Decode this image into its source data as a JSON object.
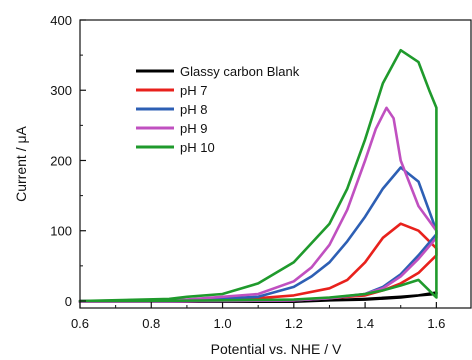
{
  "chart_data": {
    "type": "line",
    "title": "",
    "xlabel": "Potential vs. NHE / V",
    "ylabel": "Current / μA",
    "xlim": [
      0.6,
      1.7
    ],
    "ylim": [
      -10,
      400
    ],
    "xticks": [
      0.6,
      0.8,
      1.0,
      1.2,
      1.4,
      1.6
    ],
    "yticks": [
      0,
      100,
      200,
      300,
      400
    ],
    "grid": false,
    "legend_position": "top-left",
    "series": [
      {
        "name": "Glassy carbon Blank",
        "color": "#000000",
        "x": [
          0.6,
          0.9,
          1.1,
          1.3,
          1.4,
          1.5,
          1.55,
          1.6,
          1.6,
          1.5,
          1.4,
          1.3,
          1.2,
          1.0,
          0.8,
          0.6
        ],
        "y": [
          0,
          0,
          0.5,
          1,
          2,
          5,
          8,
          12,
          10,
          6,
          3,
          1,
          -1,
          -1,
          -1,
          -1
        ]
      },
      {
        "name": "pH 7",
        "color": "#e8211c",
        "x": [
          0.6,
          0.9,
          1.1,
          1.2,
          1.3,
          1.35,
          1.4,
          1.45,
          1.5,
          1.55,
          1.6,
          1.6,
          1.55,
          1.5,
          1.45,
          1.4,
          1.3,
          1.2,
          1.0,
          0.8,
          0.6
        ],
        "y": [
          0,
          1,
          4,
          8,
          18,
          30,
          55,
          90,
          110,
          100,
          75,
          65,
          40,
          25,
          15,
          8,
          4,
          1,
          0,
          -1,
          -1
        ]
      },
      {
        "name": "pH 8",
        "color": "#2d5fb4",
        "x": [
          0.6,
          0.9,
          1.1,
          1.2,
          1.25,
          1.3,
          1.35,
          1.4,
          1.45,
          1.5,
          1.55,
          1.6,
          1.6,
          1.55,
          1.5,
          1.45,
          1.4,
          1.3,
          1.2,
          1.0,
          0.8,
          0.6
        ],
        "y": [
          0,
          1,
          6,
          20,
          35,
          55,
          85,
          120,
          160,
          190,
          170,
          100,
          95,
          65,
          38,
          20,
          10,
          4,
          1,
          0,
          -1,
          -1
        ]
      },
      {
        "name": "pH 9",
        "color": "#c050c0",
        "x": [
          0.6,
          0.9,
          1.1,
          1.2,
          1.25,
          1.3,
          1.35,
          1.4,
          1.43,
          1.46,
          1.48,
          1.5,
          1.55,
          1.6,
          1.6,
          1.55,
          1.5,
          1.45,
          1.4,
          1.3,
          1.2,
          1.0,
          0.8,
          0.6
        ],
        "y": [
          0,
          2,
          10,
          28,
          48,
          80,
          130,
          200,
          245,
          275,
          260,
          200,
          135,
          100,
          90,
          60,
          35,
          18,
          10,
          4,
          1,
          0,
          -1,
          -1
        ]
      },
      {
        "name": "pH 10",
        "color": "#1f9a2c",
        "x": [
          0.6,
          0.85,
          0.9,
          1.0,
          1.1,
          1.2,
          1.3,
          1.35,
          1.4,
          1.45,
          1.5,
          1.55,
          1.58,
          1.6,
          1.6,
          1.55,
          1.5,
          1.45,
          1.4,
          1.3,
          1.2,
          1.0,
          0.8,
          0.6
        ],
        "y": [
          0,
          3,
          6,
          10,
          25,
          55,
          110,
          160,
          230,
          310,
          357,
          340,
          300,
          275,
          5,
          30,
          22,
          15,
          10,
          5,
          2,
          1,
          0,
          0
        ]
      }
    ]
  }
}
